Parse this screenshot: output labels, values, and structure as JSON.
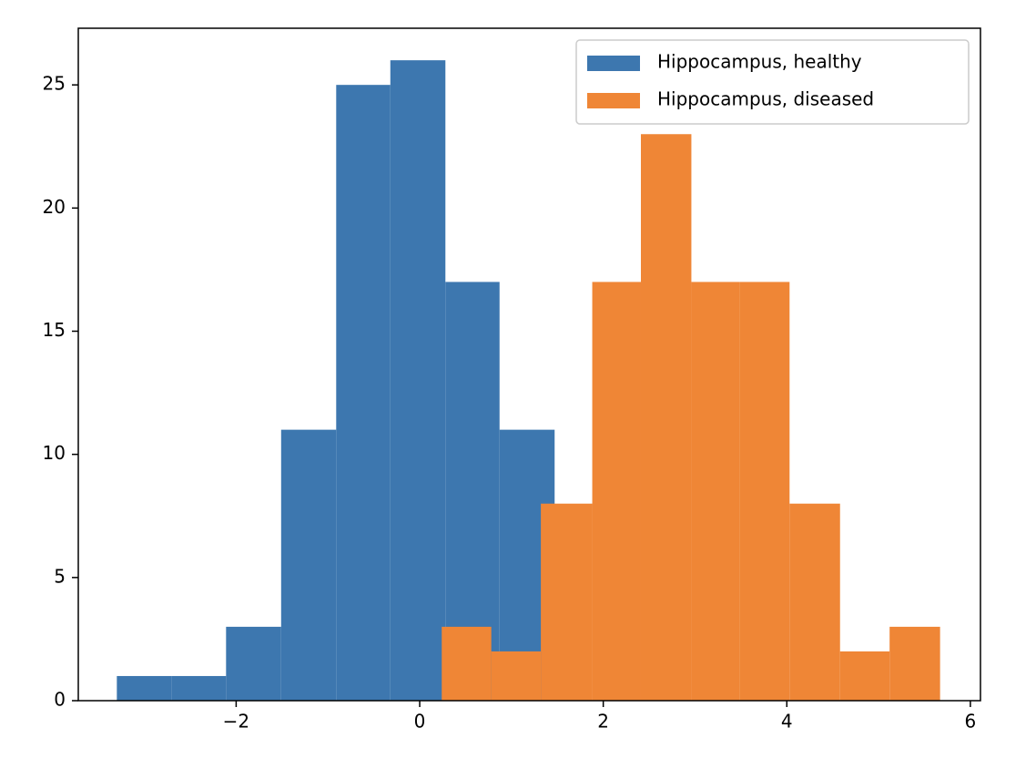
{
  "chart_data": {
    "type": "histogram",
    "series": [
      {
        "name": "Hippocampus, healthy",
        "color": "#3d77af",
        "bins": [
          -3.3,
          -2.7,
          -2.11,
          -1.51,
          -0.91,
          -0.32,
          0.28,
          0.87,
          1.47
        ],
        "values": [
          1,
          1,
          3,
          11,
          25,
          26,
          17,
          11
        ]
      },
      {
        "name": "Hippocampus, diseased",
        "color": "#ef8636",
        "bins": [
          0.24,
          0.78,
          1.32,
          1.88,
          2.41,
          2.96,
          3.49,
          4.03,
          4.58,
          5.12,
          5.67
        ],
        "values": [
          3,
          2,
          8,
          17,
          23,
          17,
          17,
          8,
          2,
          3
        ]
      }
    ],
    "xlim": [
      -3.72,
      6.11
    ],
    "ylim": [
      0,
      27.3
    ],
    "xticks": [
      {
        "value": -2,
        "label": "−2"
      },
      0,
      2,
      4,
      6
    ],
    "yticks": [
      0,
      5,
      10,
      15,
      20,
      25
    ],
    "legend": "upper right"
  }
}
